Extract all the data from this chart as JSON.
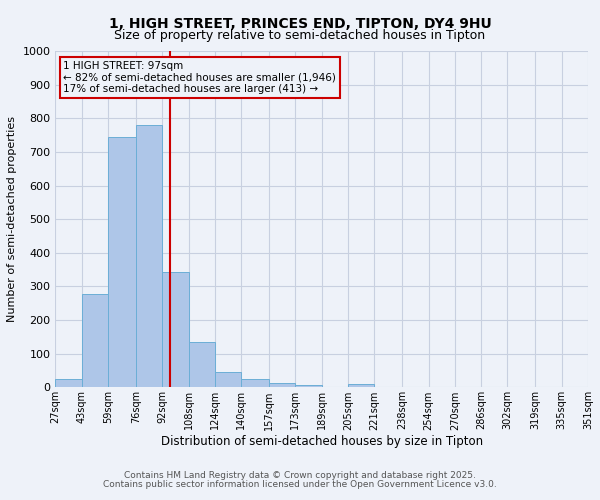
{
  "title1": "1, HIGH STREET, PRINCES END, TIPTON, DY4 9HU",
  "title2": "Size of property relative to semi-detached houses in Tipton",
  "xlabel": "Distribution of semi-detached houses by size in Tipton",
  "ylabel": "Number of semi-detached properties",
  "bin_labels": [
    "27sqm",
    "43sqm",
    "59sqm",
    "76sqm",
    "92sqm",
    "108sqm",
    "124sqm",
    "140sqm",
    "157sqm",
    "173sqm",
    "189sqm",
    "205sqm",
    "221sqm",
    "238sqm",
    "254sqm",
    "270sqm",
    "286sqm",
    "302sqm",
    "319sqm",
    "335sqm",
    "351sqm"
  ],
  "bin_edges": [
    27,
    43,
    59,
    76,
    92,
    108,
    124,
    140,
    157,
    173,
    189,
    205,
    221,
    238,
    254,
    270,
    286,
    302,
    319,
    335,
    351
  ],
  "counts": [
    25,
    277,
    744,
    779,
    343,
    135,
    46,
    26,
    13,
    7,
    0,
    10,
    0,
    0,
    0,
    0,
    0,
    0,
    0,
    0
  ],
  "bar_color": "#aec6e8",
  "bar_edge_color": "#6baed6",
  "property_size": 97,
  "red_line_color": "#cc0000",
  "annotation_line1": "1 HIGH STREET: 97sqm",
  "annotation_line2": "← 82% of semi-detached houses are smaller (1,946)",
  "annotation_line3": "17% of semi-detached houses are larger (413) →",
  "ylim": [
    0,
    1000
  ],
  "yticks": [
    0,
    100,
    200,
    300,
    400,
    500,
    600,
    700,
    800,
    900,
    1000
  ],
  "footer1": "Contains HM Land Registry data © Crown copyright and database right 2025.",
  "footer2": "Contains public sector information licensed under the Open Government Licence v3.0.",
  "bg_color": "#eef2f9",
  "grid_color": "#c8d0e0",
  "title_fontsize": 10,
  "subtitle_fontsize": 9,
  "ylabel_fontsize": 8,
  "xlabel_fontsize": 8.5,
  "tick_fontsize": 7,
  "ann_fontsize": 7.5,
  "footer_fontsize": 6.5
}
